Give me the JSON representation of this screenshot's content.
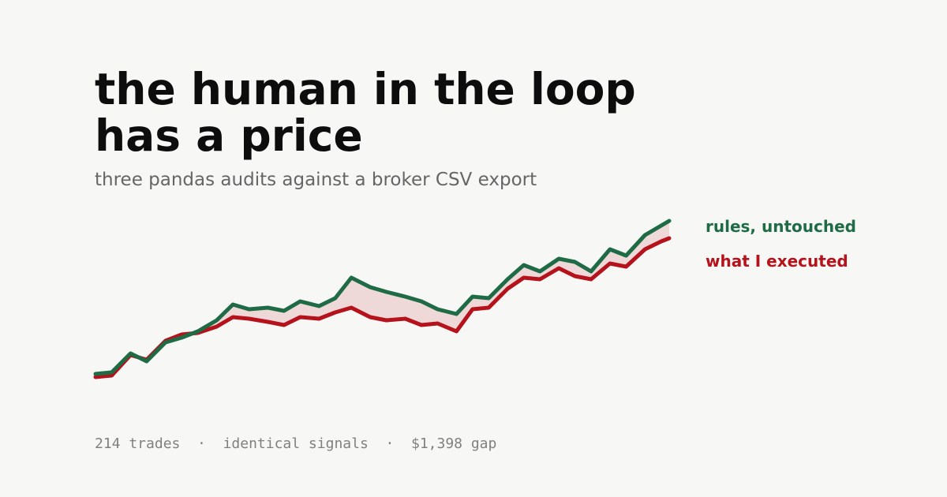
{
  "title_lines": [
    "the human in the loop",
    "has a price"
  ],
  "subtitle": "three pandas audits against a broker CSV export",
  "footer": {
    "parts": [
      "214 trades",
      "identical signals",
      "$1,398 gap"
    ],
    "separator": "  ·  "
  },
  "colors": {
    "background": "#f7f7f5",
    "rules": "#1f6b46",
    "executed": "#b5121b",
    "gap_fill": "#b5121b"
  },
  "chart_data": {
    "type": "line",
    "title": "",
    "xlabel": "",
    "ylabel": "",
    "grid": false,
    "legend": "right",
    "xlim": [
      0,
      213
    ],
    "ylim": [
      0,
      100
    ],
    "x": [
      0,
      6,
      13,
      19,
      26,
      32,
      38,
      45,
      51,
      57,
      64,
      70,
      76,
      83,
      89,
      95,
      102,
      108,
      115,
      121,
      127,
      134,
      140,
      146,
      153,
      159,
      165,
      172,
      178,
      184,
      191,
      197,
      204,
      210,
      213
    ],
    "series": [
      {
        "name": "rules, untouched",
        "values": [
          2,
          3,
          15,
          10,
          22,
          25,
          29,
          36,
          46,
          43,
          44,
          42,
          48,
          45,
          50,
          63,
          57,
          54,
          51,
          48,
          43,
          40,
          51,
          50,
          62,
          71,
          67,
          75,
          73,
          67,
          81,
          77,
          90,
          96,
          99
        ]
      },
      {
        "name": "what I executed",
        "values": [
          0,
          1,
          14,
          11,
          23,
          27,
          28,
          32,
          38,
          37,
          35,
          33,
          38,
          37,
          41,
          44,
          38,
          36,
          37,
          33,
          34,
          29,
          43,
          44,
          56,
          63,
          62,
          69,
          64,
          62,
          72,
          70,
          81,
          86,
          88
        ]
      }
    ]
  }
}
